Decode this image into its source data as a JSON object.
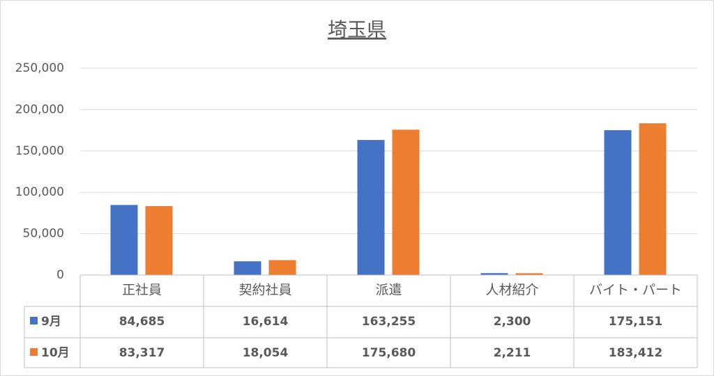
{
  "chart_data": {
    "type": "bar",
    "title": "埼玉県",
    "categories": [
      "正社員",
      "契約社員",
      "派遣",
      "人材紹介",
      "バイト・パート"
    ],
    "series": [
      {
        "name": "9月",
        "color": "#4472c4",
        "values": [
          84685,
          16614,
          163255,
          2300,
          175151
        ],
        "value_labels": [
          "84,685",
          "16,614",
          "163,255",
          "2,300",
          "175,151"
        ]
      },
      {
        "name": "10月",
        "color": "#ed7d31",
        "values": [
          83317,
          18054,
          175680,
          2211,
          183412
        ],
        "value_labels": [
          "83,317",
          "18,054",
          "175,680",
          "2,211",
          "183,412"
        ]
      }
    ],
    "ylim": [
      0,
      250000
    ],
    "yticks": [
      0,
      {
        "value": 50000,
        "label": "50,000"
      },
      {
        "value": 100000,
        "label": "100,000"
      },
      {
        "value": 150000,
        "label": "150,000"
      },
      {
        "value": 200000,
        "label": "200,000"
      },
      {
        "value": 250000,
        "label": "250,000"
      }
    ],
    "grid": true,
    "data_table": true
  }
}
